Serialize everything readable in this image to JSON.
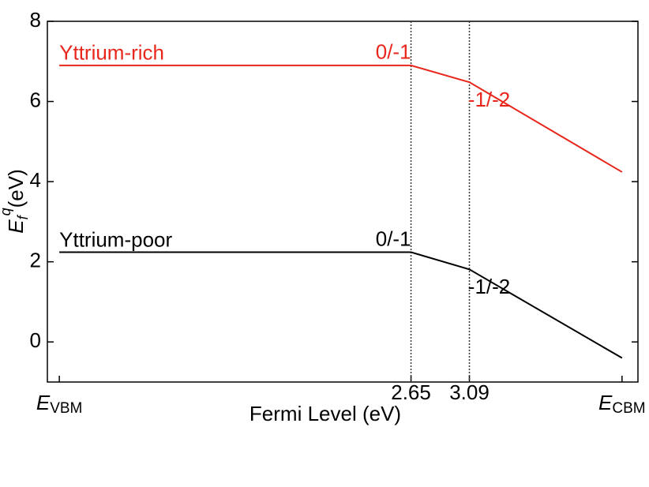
{
  "chart_data": {
    "type": "line",
    "x_label": "Fermi Level (eV)",
    "y_label": {
      "main": "E",
      "sub": "f",
      "sup": "q",
      "unit": "(eV)"
    },
    "xlim": [
      -0.09,
      4.36
    ],
    "ylim": [
      -1,
      8
    ],
    "xticks": [
      {
        "value": 0,
        "label": "E",
        "sub": "VBM"
      },
      2.65,
      3.09,
      {
        "value": 4.24,
        "label": "E",
        "sub": "CBM"
      }
    ],
    "yticks": [
      0,
      2,
      4,
      6,
      8
    ],
    "x": [
      0,
      2.65,
      3.09,
      4.24
    ],
    "series": [
      {
        "name": "Yttrium-rich",
        "color": "#e8261c",
        "values": [
          6.9,
          6.9,
          6.48,
          4.24
        ],
        "labels": [
          "0/-1",
          "-1/-2"
        ]
      },
      {
        "name": "Yttrium-poor",
        "color": "#000000",
        "values": [
          2.24,
          2.24,
          1.81,
          -0.4
        ],
        "labels": [
          "0/-1",
          "-1/-2"
        ]
      }
    ]
  }
}
